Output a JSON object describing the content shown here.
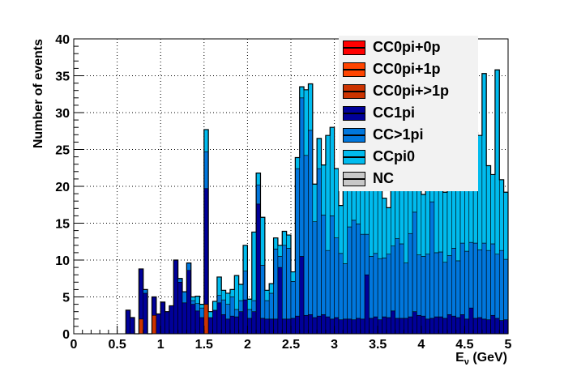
{
  "chart_data": {
    "type": "bar",
    "stacked": true,
    "title": "",
    "xlabel": "E_v (GeV)",
    "xlabel_main": "E",
    "xlabel_sub": "ν",
    "xlabel_unit": " (GeV)",
    "ylabel": "Number of events",
    "xlim": [
      0,
      5
    ],
    "ylim": [
      0,
      40
    ],
    "bin_width": 0.05,
    "grid": true,
    "legend_position": "top-right",
    "x_ticks": [
      0,
      0.5,
      1,
      1.5,
      2,
      2.5,
      3,
      3.5,
      4,
      4.5,
      5
    ],
    "x_tick_labels": [
      "0",
      "0.5",
      "1",
      "1.5",
      "2",
      "2.5",
      "3",
      "3.5",
      "4",
      "4.5",
      "5"
    ],
    "y_ticks": [
      0,
      5,
      10,
      15,
      20,
      25,
      30,
      35,
      40
    ],
    "y_tick_labels": [
      "0",
      "5",
      "10",
      "15",
      "20",
      "25",
      "30",
      "35",
      "40"
    ],
    "x": [
      0.625,
      0.675,
      0.725,
      0.775,
      0.825,
      0.875,
      0.925,
      0.975,
      1.025,
      1.075,
      1.125,
      1.175,
      1.225,
      1.275,
      1.325,
      1.375,
      1.425,
      1.475,
      1.525,
      1.575,
      1.625,
      1.675,
      1.725,
      1.775,
      1.825,
      1.875,
      1.925,
      1.975,
      2.025,
      2.075,
      2.125,
      2.175,
      2.225,
      2.275,
      2.325,
      2.375,
      2.425,
      2.475,
      2.525,
      2.575,
      2.625,
      2.675,
      2.725,
      2.775,
      2.825,
      2.875,
      2.925,
      2.975,
      3.025,
      3.075,
      3.125,
      3.175,
      3.225,
      3.275,
      3.325,
      3.375,
      3.425,
      3.475,
      3.525,
      3.575,
      3.625,
      3.675,
      3.725,
      3.775,
      3.825,
      3.875,
      3.925,
      3.975,
      4.025,
      4.075,
      4.125,
      4.175,
      4.225,
      4.275,
      4.325,
      4.375,
      4.425,
      4.475,
      4.525,
      4.575,
      4.625,
      4.675,
      4.725,
      4.775,
      4.825,
      4.875,
      4.925,
      4.975
    ],
    "series": [
      {
        "name": "CC0pi+0p",
        "color": "#ff0000",
        "values": [
          0,
          0,
          0,
          0,
          0,
          0,
          0,
          0,
          0,
          0,
          0,
          0,
          0,
          0,
          0,
          0,
          0,
          0,
          0,
          0,
          0,
          0,
          0,
          0,
          0,
          0,
          0,
          0,
          0,
          0,
          0,
          0,
          0,
          0,
          0,
          0,
          0,
          0,
          0,
          0,
          0,
          0,
          0,
          0,
          0,
          0,
          0,
          0,
          0,
          0,
          0,
          0,
          0,
          0,
          0,
          0,
          0,
          0,
          0,
          0,
          0,
          0,
          0,
          0,
          0,
          0,
          0,
          0,
          0,
          0,
          0,
          0,
          0,
          0,
          0,
          0,
          0,
          0,
          0,
          0,
          0,
          0,
          0,
          0,
          0,
          0,
          0,
          0
        ]
      },
      {
        "name": "CC0pi+1p",
        "color": "#ff4400",
        "values": [
          0,
          0,
          0,
          0,
          0,
          0,
          0,
          0,
          0,
          0,
          0,
          0,
          0,
          0,
          0,
          0,
          0,
          0,
          0,
          0,
          0,
          0,
          0,
          0,
          0,
          0,
          0,
          0,
          0,
          0,
          0,
          0,
          0,
          0,
          0,
          0,
          0,
          0,
          0,
          0,
          0,
          0,
          0,
          0,
          0,
          0,
          0,
          0,
          0,
          0,
          0,
          0,
          0,
          0,
          0,
          0,
          0,
          0,
          0,
          0,
          0,
          0,
          0,
          0,
          0,
          0,
          0,
          0,
          0,
          0,
          0,
          0,
          0,
          0,
          0,
          0,
          0,
          0,
          0,
          0,
          0,
          0,
          0,
          0,
          0,
          0,
          0,
          0
        ]
      },
      {
        "name": "CC0pi+>1p",
        "color": "#cc3300",
        "values": [
          0,
          0,
          0,
          2,
          0,
          0,
          2.5,
          0,
          0,
          0,
          0,
          0,
          0,
          0,
          0,
          0,
          0,
          0,
          4,
          0,
          0,
          0,
          0,
          0,
          0,
          0,
          0,
          0,
          0,
          0,
          0,
          0,
          0,
          0,
          0,
          0,
          0,
          0,
          0,
          0,
          0,
          0,
          0,
          0,
          0,
          0,
          0,
          0,
          0,
          0,
          0,
          0,
          0,
          0,
          0,
          0,
          0,
          0,
          0,
          0,
          0,
          0,
          0,
          0,
          0,
          0,
          0,
          0,
          0,
          0,
          0,
          0,
          0,
          0,
          0,
          0,
          0,
          0,
          0,
          0,
          0,
          0,
          0,
          0,
          0,
          0,
          0,
          0
        ]
      },
      {
        "name": "CC1pi",
        "color": "#000099",
        "values": [
          3.2,
          2.2,
          0,
          6.8,
          5.5,
          0,
          2.5,
          2.7,
          4.3,
          3,
          3.8,
          10,
          7,
          4.2,
          8.6,
          4,
          3.1,
          2.2,
          15.7,
          2.2,
          3.2,
          4.2,
          2.6,
          2,
          2.4,
          2.3,
          3,
          4.6,
          2.1,
          3,
          17.6,
          2.1,
          2,
          2,
          2,
          9,
          2,
          2,
          2.1,
          2.4,
          10.5,
          2.5,
          2.6,
          2.2,
          2.4,
          2.6,
          2.3,
          2,
          2.2,
          1.9,
          2,
          2,
          1.9,
          2.1,
          2,
          8,
          2.1,
          2.3,
          1.9,
          2.3,
          2.2,
          3.1,
          2.1,
          2.1,
          2.1,
          2.3,
          3,
          2.5,
          2.4,
          2,
          2.1,
          2.3,
          2.3,
          2.1,
          2.6,
          2.4,
          2.2,
          2.6,
          2,
          3.5,
          2.1,
          2.2,
          2,
          1.9,
          2.5,
          2.1,
          1.8,
          1.9
        ]
      },
      {
        "name": "CC>1pi",
        "color": "#0077dd",
        "values": [
          0,
          0,
          0,
          0,
          0.5,
          0,
          0,
          0,
          0,
          0,
          0,
          0,
          0.5,
          1.5,
          1,
          0.5,
          1,
          1.3,
          5,
          0,
          0,
          1,
          2,
          2,
          2.6,
          1,
          1.5,
          3.9,
          1.2,
          1.5,
          2.6,
          7.2,
          2.5,
          3.5,
          9.5,
          1.5,
          10,
          9.6,
          5,
          20,
          21.5,
          21.7,
          25,
          13,
          20,
          13.5,
          9,
          14,
          10.8,
          9,
          7.5,
          12.5,
          13.5,
          12.8,
          11.5,
          5.5,
          8.4,
          8.6,
          8.3,
          8,
          8.6,
          8.8,
          10.8,
          10.1,
          7.5,
          11.3,
          13.5,
          8.2,
          8.1,
          8.8,
          15.8,
          8.7,
          8.8,
          7.6,
          8,
          9.2,
          7.7,
          9.7,
          9.2,
          8.9,
          10.2,
          9.2,
          10.3,
          9.4,
          9.7,
          8.7,
          9.5,
          8.2
        ]
      },
      {
        "name": "CCpi0",
        "color": "#00bbee",
        "values": [
          0,
          0,
          0,
          0,
          0,
          0,
          0,
          0,
          0,
          0,
          0,
          0,
          0,
          0,
          0,
          0.5,
          1,
          0.5,
          3,
          0.8,
          1.2,
          2.5,
          1.3,
          1.5,
          1,
          4.6,
          2.2,
          3.5,
          1.4,
          9.3,
          1.6,
          6.5,
          1.4,
          1.3,
          1.5,
          1.5,
          1.9,
          1.8,
          1.3,
          1.5,
          1.5,
          8.9,
          6.3,
          5.1,
          4.1,
          6.8,
          15.6,
          12,
          9.4,
          6.5,
          12.2,
          8.6,
          7.4,
          6.8,
          8.1,
          17,
          9,
          8.5,
          9.8,
          8.1,
          6.3,
          8.6,
          10.7,
          9.2,
          10.3,
          9.5,
          10.7,
          9.4,
          8.4,
          10.5,
          10.3,
          11,
          10.9,
          9.5,
          12.7,
          13.9,
          16.5,
          11.2,
          12.5,
          10.2,
          15,
          15.5,
          23,
          11.5,
          9.4,
          25,
          9.6,
          9.1
        ]
      },
      {
        "name": "NC",
        "color": "#c8c8c8",
        "values": [
          0,
          0,
          0,
          0,
          0,
          0,
          0,
          0,
          0,
          0,
          0,
          0,
          0,
          0,
          0,
          0,
          0,
          0,
          0,
          0,
          0,
          0,
          0,
          0,
          0,
          0,
          0,
          0,
          0,
          0,
          0,
          0,
          0,
          0,
          0,
          0,
          0,
          0,
          0,
          0,
          0,
          0,
          0,
          0,
          0,
          0,
          0,
          0,
          0,
          0,
          0,
          0,
          0,
          0,
          0,
          0,
          0,
          0,
          0,
          0,
          0,
          0,
          0,
          0,
          0,
          0,
          0,
          0,
          0,
          0,
          0,
          0,
          0,
          0,
          0,
          0,
          0,
          0,
          0,
          0,
          0,
          0,
          0,
          0,
          0,
          0,
          0,
          0
        ]
      }
    ]
  }
}
